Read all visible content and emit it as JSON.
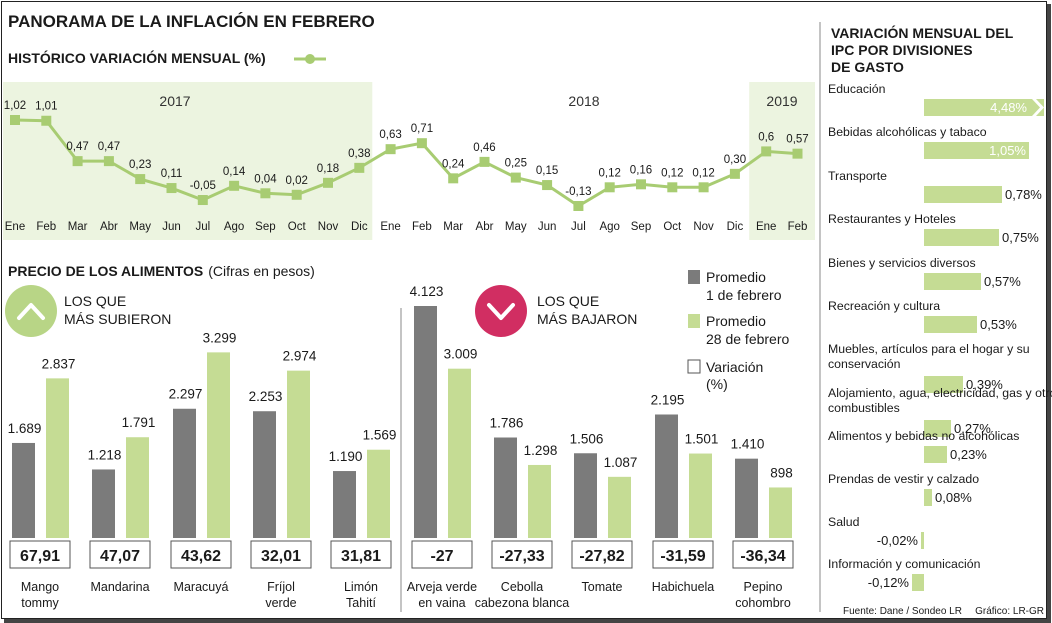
{
  "title": "PANORAMA DE LA INFLACIÓN EN FEBRERO",
  "line_section": {
    "title": "HISTÓRICO VARIACIÓN MENSUAL (%)",
    "years": [
      "2017",
      "2018",
      "2019"
    ]
  },
  "food_section": {
    "title": "PRECIO DE LOS ALIMENTOS",
    "subtitle": "(Cifras en pesos)",
    "up_label": [
      "LOS QUE",
      "MÁS SUBIERON"
    ],
    "down_label": [
      "LOS QUE",
      "MÁS BAJARON"
    ],
    "legend": {
      "feb1": [
        "Promedio",
        "1 de febrero"
      ],
      "feb28": [
        "Promedio",
        "28 de febrero"
      ],
      "variation": [
        "Variación",
        "(%)"
      ]
    }
  },
  "divisions_section": {
    "title": [
      "VARIACIÓN MENSUAL DEL",
      "IPC POR DIVISIONES",
      "DE GASTO"
    ]
  },
  "footer": {
    "source": "Fuente: Dane / Sondeo LR",
    "credit": "Gráfico: LR-GR"
  },
  "colors": {
    "green": "#c5dc94",
    "green_line": "#a8cc72",
    "highlight": "#ecf4e0",
    "gray": "#7b7b7b",
    "up_circle": "#b8d586",
    "down_circle": "#d12e62"
  },
  "chart_data": [
    {
      "type": "line",
      "title": "HISTÓRICO VARIACIÓN MENSUAL (%)",
      "x": [
        "Ene",
        "Feb",
        "Mar",
        "Abr",
        "May",
        "Jun",
        "Jul",
        "Ago",
        "Sep",
        "Oct",
        "Nov",
        "Dic",
        "Ene",
        "Feb",
        "Mar",
        "Abr",
        "May",
        "Jun",
        "Jul",
        "Ago",
        "Sep",
        "Oct",
        "Nov",
        "Dic",
        "Ene",
        "Feb"
      ],
      "values": [
        1.02,
        1.01,
        0.47,
        0.47,
        0.23,
        0.11,
        -0.05,
        0.14,
        0.04,
        0.02,
        0.18,
        0.38,
        0.63,
        0.71,
        0.24,
        0.46,
        0.25,
        0.15,
        -0.13,
        0.12,
        0.16,
        0.12,
        0.12,
        0.3,
        0.6,
        0.57
      ],
      "labels": [
        "1,02",
        "1,01",
        "0,47",
        "0,47",
        "0,23",
        "0,11",
        "-0,05",
        "0,14",
        "0,04",
        "0,02",
        "0,18",
        "0,38",
        "0,63",
        "0,71",
        "0,24",
        "0,46",
        "0,25",
        "0,15",
        "-0,13",
        "0,12",
        "0,16",
        "0,12",
        "0,12",
        "0,30",
        "0,6",
        "0,57"
      ],
      "years": [
        "2017",
        "2018",
        "2019"
      ],
      "ylim": [
        -0.2,
        1.1
      ]
    },
    {
      "type": "bar",
      "title": "PRECIO DE LOS ALIMENTOS",
      "series": [
        {
          "name": "Promedio 1 de febrero",
          "values": [
            1689,
            1218,
            2297,
            2253,
            1190,
            4123,
            1786,
            1506,
            2195,
            1410
          ],
          "labels": [
            "1.689",
            "1.218",
            "2.297",
            "2.253",
            "1.190",
            "4.123",
            "1.786",
            "1.506",
            "2.195",
            "1.410"
          ]
        },
        {
          "name": "Promedio 28 de febrero",
          "values": [
            2837,
            1791,
            3299,
            2974,
            1569,
            3009,
            1298,
            1087,
            1501,
            898
          ],
          "labels": [
            "2.837",
            "1.791",
            "3.299",
            "2.974",
            "1.569",
            "3.009",
            "1.298",
            "1.087",
            "1.501",
            "898"
          ]
        }
      ],
      "categories": [
        [
          "Mango",
          "tommy"
        ],
        [
          "Mandarina"
        ],
        [
          "Maracuyá"
        ],
        [
          "Fríjol",
          "verde"
        ],
        [
          "Limón",
          "Tahití"
        ],
        [
          "Arveja verde",
          "en vaina"
        ],
        [
          "Cebolla",
          "cabezona blanca"
        ],
        [
          "Tomate"
        ],
        [
          "Habichuela"
        ],
        [
          "Pepino",
          "cohombro"
        ]
      ],
      "variation": [
        "67,91",
        "47,07",
        "43,62",
        "32,01",
        "31,81",
        "-27",
        "-27,33",
        "-27,82",
        "-31,59",
        "-36,34"
      ],
      "ylim": [
        0,
        4300
      ]
    },
    {
      "type": "bar",
      "orientation": "horizontal",
      "title": "VARIACIÓN MENSUAL DEL IPC POR DIVISIONES DE GASTO",
      "categories": [
        [
          "Educación"
        ],
        [
          "Bebidas alcohólicas y tabaco"
        ],
        [
          "Transporte"
        ],
        [
          "Restaurantes y Hoteles"
        ],
        [
          "Bienes y servicios diversos"
        ],
        [
          "Recreación y cultura"
        ],
        [
          "Muebles, artículos para el hogar y su",
          "conservación"
        ],
        [
          "Alojamiento, agua, electricidad, gas y otros",
          "combustibles"
        ],
        [
          "Alimentos y bebidas no alcohólicas"
        ],
        [
          "Prendas de vestir y calzado"
        ],
        [
          "Salud"
        ],
        [
          "Información y comunicación"
        ]
      ],
      "values": [
        4.48,
        1.05,
        0.78,
        0.75,
        0.57,
        0.53,
        0.39,
        0.27,
        0.23,
        0.08,
        -0.02,
        -0.12
      ],
      "labels": [
        "4,48%",
        "1,05%",
        "0,78%",
        "0,75%",
        "0,57%",
        "0,53%",
        "0,39%",
        "0,27%",
        "0,23%",
        "0,08%",
        "-0,02%",
        "-0,12%"
      ]
    }
  ]
}
